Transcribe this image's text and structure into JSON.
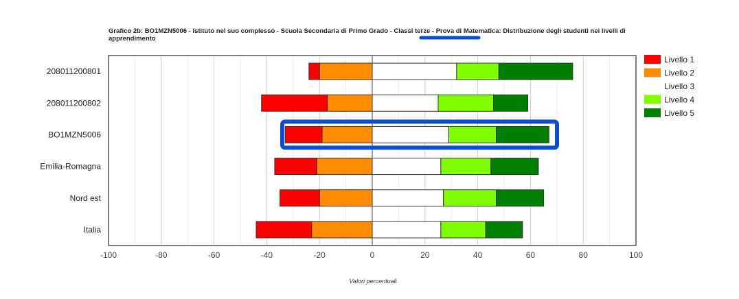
{
  "chart_data": {
    "type": "bar",
    "orientation": "horizontal",
    "stacked": "diverging",
    "title": "Grafico 2b: BO1MZN5006 - Istituto nel suo complesso - Scuola Secondaria di Primo Grado - Classi terze - Prova di Matematica: Distribuzione degli studenti nei livelli di apprendimento",
    "xlabel": "Valori percentuali",
    "ylabel": "",
    "xlim": [
      -100,
      100
    ],
    "xticks": [
      "-100",
      "-80",
      "-60",
      "-40",
      "-20",
      "0",
      "20",
      "40",
      "60",
      "80",
      "100"
    ],
    "grid": true,
    "legend_position": "right",
    "categories": [
      "208011200801",
      "208011200802",
      "BO1MZN5006",
      "Emilia-Romagna",
      "Nord est",
      "Italia"
    ],
    "series": [
      {
        "name": "Livello 1",
        "color": "#ff0000",
        "side": "negative",
        "values": [
          4,
          25,
          14,
          16,
          15,
          21
        ]
      },
      {
        "name": "Livello 2",
        "color": "#ff8c00",
        "side": "negative",
        "values": [
          20,
          17,
          19,
          21,
          20,
          23
        ]
      },
      {
        "name": "Livello 3",
        "color": "#ffffff",
        "side": "positive",
        "values": [
          32,
          25,
          29,
          26,
          27,
          26
        ]
      },
      {
        "name": "Livello 4",
        "color": "#80ff00",
        "side": "positive",
        "values": [
          16,
          21,
          18,
          19,
          20,
          17
        ]
      },
      {
        "name": "Livello 5",
        "color": "#008000",
        "side": "positive",
        "values": [
          28,
          13,
          20,
          18,
          18,
          14
        ]
      }
    ],
    "annotations": {
      "title_underline_color": "#0b4fcf",
      "highlight_box_color": "#0b4fcf",
      "highlighted_category": "BO1MZN5006"
    }
  }
}
